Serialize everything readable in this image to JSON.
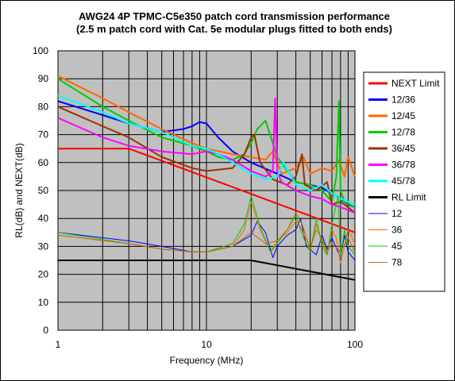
{
  "chart_data": {
    "type": "line",
    "title": "AWG24 4P TPMC-C5e350 patch cord transmission performance",
    "subtitle": "(2.5 m patch cord with Cat. 5e modular plugs fitted to both ends)",
    "xlabel": "Frequency (MHz)",
    "ylabel": "RL(dB) and NEXT(dB)",
    "xscale": "log",
    "xlim": [
      1,
      100
    ],
    "ylim": [
      0,
      100
    ],
    "xticks": [
      "1",
      "10",
      "100"
    ],
    "yticks": [
      "0",
      "10",
      "20",
      "30",
      "40",
      "50",
      "60",
      "70",
      "80",
      "90",
      "100"
    ],
    "grid": true,
    "legend_position": "right",
    "series": [
      {
        "name": "NEXT Limit",
        "color": "#ff0000",
        "width": 2,
        "x": [
          1,
          3,
          100
        ],
        "y": [
          65,
          65,
          35
        ]
      },
      {
        "name": "12/36",
        "color": "#0000ff",
        "width": 2,
        "x": [
          1,
          2,
          3,
          5,
          7,
          8,
          9,
          10,
          12,
          15,
          20,
          30,
          40,
          50,
          60,
          70,
          80,
          90,
          100
        ],
        "y": [
          82,
          77,
          74,
          71,
          72,
          73,
          74.5,
          74,
          69,
          64,
          60,
          56,
          53,
          52,
          51,
          49,
          47,
          45,
          44
        ]
      },
      {
        "name": "12/45",
        "color": "#ff6600",
        "width": 2,
        "x": [
          1,
          2,
          3,
          5,
          8,
          10,
          15,
          20,
          25,
          28,
          32,
          40,
          45,
          50,
          60,
          70,
          78,
          85,
          90,
          100
        ],
        "y": [
          91,
          83,
          78,
          72,
          67,
          65,
          63,
          62,
          61,
          64,
          56,
          58,
          62,
          56,
          58,
          57,
          61,
          55,
          62,
          55
        ]
      },
      {
        "name": "12/78",
        "color": "#00cc00",
        "width": 2,
        "x": [
          1,
          2,
          3,
          5,
          8,
          10,
          12,
          15,
          18,
          20,
          22,
          25,
          30,
          40,
          50,
          60,
          70,
          75,
          78,
          80,
          85,
          100
        ],
        "y": [
          90,
          80,
          75,
          69,
          66,
          64,
          62,
          61,
          63,
          67,
          72,
          75,
          62,
          53,
          52,
          50,
          46,
          55,
          82,
          50,
          46,
          44
        ]
      },
      {
        "name": "36/45",
        "color": "#993300",
        "width": 2,
        "x": [
          1,
          2,
          3,
          5,
          8,
          10,
          15,
          18,
          20,
          21,
          23,
          28,
          35,
          40,
          44,
          46,
          55,
          65,
          70,
          80,
          90,
          100
        ],
        "y": [
          80,
          73,
          69,
          62,
          58,
          57,
          58,
          63,
          69,
          70,
          60,
          54,
          52,
          55,
          63,
          52,
          50,
          53,
          45,
          46,
          44,
          42
        ]
      },
      {
        "name": "36/78",
        "color": "#ff00ff",
        "width": 2,
        "x": [
          1,
          2,
          3,
          5,
          8,
          10,
          12,
          15,
          20,
          25,
          28,
          29,
          30,
          32,
          40,
          50,
          60,
          70,
          80,
          90,
          100
        ],
        "y": [
          76,
          69,
          66,
          64,
          63,
          64,
          63,
          61,
          57,
          55,
          57,
          83,
          57,
          53,
          50,
          48,
          47,
          45,
          44,
          43,
          42
        ]
      },
      {
        "name": "45/78",
        "color": "#00ffff",
        "width": 2,
        "x": [
          1,
          2,
          3,
          5,
          8,
          10,
          12,
          15,
          20,
          25,
          30,
          33,
          40,
          50,
          60,
          70,
          80,
          90,
          100
        ],
        "y": [
          84,
          78,
          74,
          71,
          66,
          65,
          63,
          60,
          56,
          54,
          55,
          60,
          52,
          50,
          52,
          49,
          47,
          46,
          45
        ]
      },
      {
        "name": "RL Limit",
        "color": "#000000",
        "width": 2,
        "x": [
          1,
          20,
          100
        ],
        "y": [
          25,
          25,
          18
        ]
      },
      {
        "name": "12",
        "color": "#0000ff",
        "width": 1,
        "x": [
          1,
          3,
          5,
          8,
          10,
          15,
          20,
          22,
          25,
          28,
          30,
          35,
          40,
          43,
          47,
          55,
          60,
          65,
          70,
          80,
          85,
          90,
          100
        ],
        "y": [
          35,
          32,
          30,
          28,
          28,
          30,
          34,
          39,
          35,
          26,
          30,
          34,
          36,
          40,
          30,
          27,
          34,
          29,
          33,
          26,
          34,
          28,
          25
        ]
      },
      {
        "name": "36",
        "color": "#ff6600",
        "width": 1,
        "x": [
          1,
          3,
          5,
          8,
          10,
          15,
          18,
          20,
          23,
          27,
          30,
          35,
          40,
          43,
          50,
          55,
          60,
          65,
          70,
          75,
          80,
          90,
          100
        ],
        "y": [
          34,
          31,
          29,
          28,
          28,
          30,
          36,
          46,
          36,
          28,
          32,
          35,
          39,
          37,
          29,
          38,
          32,
          27,
          36,
          33,
          24,
          36,
          31
        ]
      },
      {
        "name": "45",
        "color": "#00cc00",
        "width": 1,
        "x": [
          1,
          3,
          5,
          8,
          10,
          15,
          18,
          20,
          23,
          27,
          30,
          35,
          40,
          45,
          50,
          55,
          60,
          65,
          70,
          77,
          80,
          85,
          90,
          100
        ],
        "y": [
          35,
          31,
          29,
          28,
          28,
          31,
          38,
          48,
          37,
          28,
          31,
          36,
          41,
          33,
          28,
          40,
          30,
          27,
          38,
          48,
          26,
          36,
          30,
          27
        ]
      },
      {
        "name": "78",
        "color": "#cc6600",
        "width": 1,
        "x": [
          1,
          3,
          5,
          8,
          10,
          15,
          20,
          25,
          30,
          35,
          40,
          44,
          50,
          55,
          60,
          65,
          70,
          80,
          90,
          100
        ],
        "y": [
          34,
          31,
          29,
          28,
          28,
          30,
          35,
          31,
          32,
          36,
          42,
          38,
          29,
          36,
          33,
          28,
          31,
          28,
          33,
          28
        ]
      }
    ]
  }
}
